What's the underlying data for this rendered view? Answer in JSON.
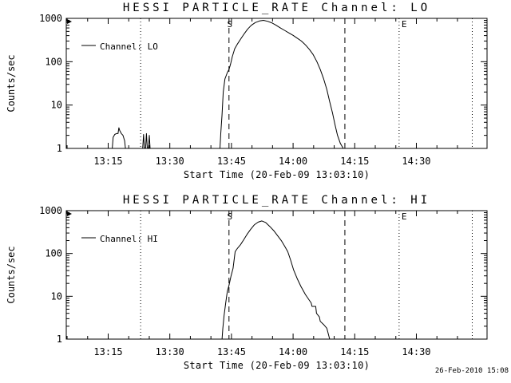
{
  "page": {
    "background": "#ffffff",
    "foreground": "#000000"
  },
  "footer": {
    "timestamp": "26-Feb-2010 15:08"
  },
  "chart_data": [
    {
      "type": "line",
      "title": "HESSI PARTICLE_RATE Channel: LO",
      "xlabel": "Start Time (20-Feb-09 13:03:10)",
      "ylabel": "Counts/sec",
      "yscale": "log",
      "ylim": [
        1,
        1000
      ],
      "ytick_labels": [
        "1",
        "10",
        "100",
        "1000"
      ],
      "x_unit": "minutes_after_13:00",
      "xlim": [
        4.8,
        107.2
      ],
      "xticks": [
        {
          "t": 15,
          "label": "13:15"
        },
        {
          "t": 30,
          "label": "13:30"
        },
        {
          "t": 45,
          "label": "13:45"
        },
        {
          "t": 60,
          "label": "14:00"
        },
        {
          "t": 75,
          "label": "14:15"
        },
        {
          "t": 90,
          "label": "14:30"
        }
      ],
      "minor_xtick_step": 5,
      "grid": false,
      "legend": {
        "label": "Channel: LO",
        "position": "top-left"
      },
      "markers": [
        {
          "t": 22.9,
          "style": "dotted",
          "label": ""
        },
        {
          "t": 44.4,
          "style": "dashed",
          "label": "S"
        },
        {
          "t": 72.6,
          "style": "dashed",
          "label": ""
        },
        {
          "t": 85.8,
          "style": "dotted",
          "label": "E"
        },
        {
          "t": 103.6,
          "style": "dotted",
          "label": ""
        }
      ],
      "series": [
        {
          "name": "Channel: LO",
          "segments": [
            [
              [
                16.0,
                1
              ],
              [
                16.2,
                1.8
              ],
              [
                16.6,
                2.1
              ],
              [
                17.0,
                2.2
              ],
              [
                17.4,
                2.2
              ],
              [
                17.6,
                3.0
              ],
              [
                17.8,
                2.6
              ],
              [
                18.2,
                2.2
              ],
              [
                18.6,
                2.0
              ],
              [
                19.0,
                1.5
              ],
              [
                19.2,
                1.0
              ]
            ],
            [
              [
                23.4,
                1
              ],
              [
                23.6,
                2.1
              ],
              [
                23.8,
                1.05
              ],
              [
                24.1,
                1
              ],
              [
                24.3,
                2.2
              ],
              [
                24.5,
                1.05
              ],
              [
                24.8,
                1
              ],
              [
                25.0,
                2.0
              ],
              [
                25.2,
                1
              ]
            ],
            [
              [
                42.2,
                1
              ],
              [
                42.4,
                2.2
              ],
              [
                42.7,
                6
              ],
              [
                43.0,
                20
              ],
              [
                43.4,
                40
              ],
              [
                44.0,
                56
              ],
              [
                44.4,
                66
              ],
              [
                44.8,
                90
              ],
              [
                45.2,
                130
              ],
              [
                45.8,
                200
              ],
              [
                46.5,
                260
              ],
              [
                47.3,
                340
              ],
              [
                48.1,
                440
              ],
              [
                48.9,
                560
              ],
              [
                49.8,
                690
              ],
              [
                50.8,
                800
              ],
              [
                51.8,
                870
              ],
              [
                52.8,
                900
              ],
              [
                53.8,
                855
              ],
              [
                54.8,
                790
              ],
              [
                55.8,
                700
              ],
              [
                56.8,
                610
              ],
              [
                57.9,
                530
              ],
              [
                59.0,
                460
              ],
              [
                60.0,
                405
              ],
              [
                61.0,
                350
              ],
              [
                62.0,
                300
              ],
              [
                63.0,
                245
              ],
              [
                64.0,
                190
              ],
              [
                64.9,
                145
              ],
              [
                65.8,
                100
              ],
              [
                66.6,
                66
              ],
              [
                67.4,
                41
              ],
              [
                68.2,
                23
              ],
              [
                68.9,
                12
              ],
              [
                69.6,
                6.5
              ],
              [
                70.2,
                3.5
              ],
              [
                70.8,
                2.0
              ],
              [
                71.5,
                1.3
              ],
              [
                72.2,
                1.0
              ]
            ]
          ]
        }
      ]
    },
    {
      "type": "line",
      "title": "HESSI PARTICLE_RATE Channel: HI",
      "xlabel": "Start Time (20-Feb-09 13:03:10)",
      "ylabel": "Counts/sec",
      "yscale": "log",
      "ylim": [
        1,
        1000
      ],
      "ytick_labels": [
        "1",
        "10",
        "100",
        "1000"
      ],
      "x_unit": "minutes_after_13:00",
      "xlim": [
        4.8,
        107.2
      ],
      "xticks": [
        {
          "t": 15,
          "label": "13:15"
        },
        {
          "t": 30,
          "label": "13:30"
        },
        {
          "t": 45,
          "label": "13:45"
        },
        {
          "t": 60,
          "label": "14:00"
        },
        {
          "t": 75,
          "label": "14:15"
        },
        {
          "t": 90,
          "label": "14:30"
        }
      ],
      "minor_xtick_step": 5,
      "grid": false,
      "legend": {
        "label": "Channel: HI",
        "position": "top-left"
      },
      "markers": [
        {
          "t": 22.9,
          "style": "dotted",
          "label": ""
        },
        {
          "t": 44.4,
          "style": "dashed",
          "label": "S"
        },
        {
          "t": 72.6,
          "style": "dashed",
          "label": ""
        },
        {
          "t": 85.8,
          "style": "dotted",
          "label": "E"
        },
        {
          "t": 103.6,
          "style": "dotted",
          "label": ""
        }
      ],
      "series": [
        {
          "name": "Channel: HI",
          "segments": [
            [
              [
                42.7,
                1
              ],
              [
                42.9,
                1.8
              ],
              [
                43.2,
                3.5
              ],
              [
                43.6,
                7
              ],
              [
                44.0,
                13
              ],
              [
                44.4,
                18
              ],
              [
                44.9,
                30
              ],
              [
                45.4,
                45
              ],
              [
                45.9,
                110
              ],
              [
                46.4,
                130
              ],
              [
                47.2,
                160
              ],
              [
                48.0,
                210
              ],
              [
                48.8,
                280
              ],
              [
                49.7,
                370
              ],
              [
                50.6,
                470
              ],
              [
                51.5,
                540
              ],
              [
                52.4,
                575
              ],
              [
                53.3,
                530
              ],
              [
                54.3,
                430
              ],
              [
                55.3,
                340
              ],
              [
                56.3,
                255
              ],
              [
                57.2,
                195
              ],
              [
                58.0,
                145
              ],
              [
                58.7,
                110
              ],
              [
                59.4,
                70
              ],
              [
                60.1,
                42
              ],
              [
                61.0,
                26
              ],
              [
                61.9,
                17
              ],
              [
                63.0,
                11
              ],
              [
                63.8,
                8.5
              ],
              [
                64.4,
                7
              ],
              [
                64.6,
                5.8
              ],
              [
                65.5,
                5.8
              ],
              [
                65.7,
                4.0
              ],
              [
                66.4,
                3.3
              ],
              [
                66.6,
                2.6
              ],
              [
                67.4,
                2.2
              ],
              [
                68.2,
                1.8
              ],
              [
                68.6,
                1.3
              ],
              [
                68.9,
                1.0
              ]
            ]
          ]
        }
      ]
    }
  ]
}
